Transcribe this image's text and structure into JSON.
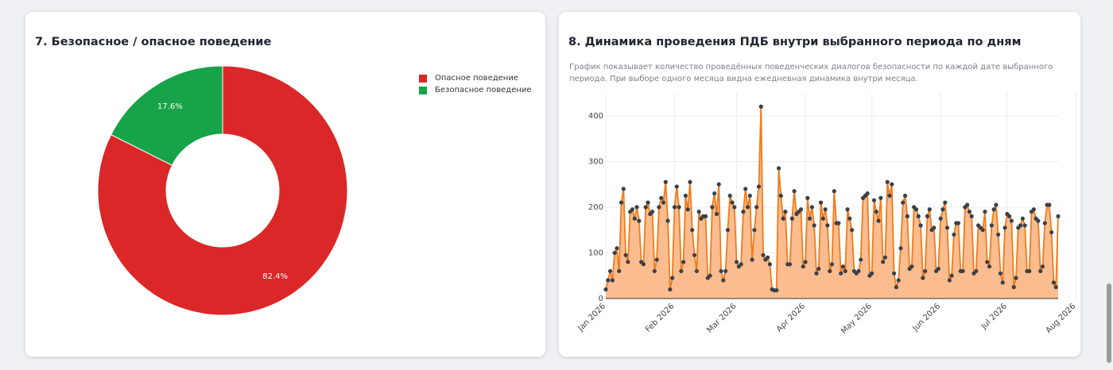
{
  "colors": {
    "danger": "#db2727",
    "safe": "#17a347",
    "line": "#f27b1b",
    "area": "#fbbd8f",
    "marker": "#3a4049"
  },
  "donut_card": {
    "title": "7. Безопасное / опасное поведение"
  },
  "line_card": {
    "title": "8. Динамика проведения ПДБ внутри выбранного периода по дням",
    "description": "График показывает количество проведённых поведенческих диалогов безопасности по каждой дате выбранного периода. При выборе одного месяца видна ежедневная динамика внутри месяца."
  },
  "chart_data": [
    {
      "type": "pie",
      "hole": true,
      "labels": [
        "Опасное поведение",
        "Безопасное поведение"
      ],
      "values": [
        82.4,
        17.6
      ],
      "value_labels": [
        "82.4%",
        "17.6%"
      ],
      "colors": [
        "#db2727",
        "#17a347"
      ],
      "legend": "top-right"
    },
    {
      "type": "area",
      "x_start": "2026-01-01",
      "xticks": [
        "Jan 2026",
        "Feb 2026",
        "Mar 2026",
        "Apr 2026",
        "May 2026",
        "Jun 2026",
        "Jul 2026",
        "Aug 2026"
      ],
      "yticks": [
        "0",
        "100",
        "200",
        "300",
        "400"
      ],
      "ylim": [
        0,
        450
      ],
      "grid": true,
      "values": [
        20,
        40,
        60,
        40,
        100,
        110,
        60,
        210,
        240,
        95,
        80,
        190,
        195,
        175,
        200,
        170,
        80,
        75,
        200,
        210,
        185,
        190,
        60,
        85,
        200,
        220,
        210,
        255,
        170,
        20,
        45,
        200,
        245,
        200,
        60,
        80,
        225,
        195,
        255,
        150,
        95,
        60,
        190,
        175,
        180,
        180,
        45,
        50,
        200,
        230,
        185,
        250,
        60,
        40,
        60,
        150,
        225,
        210,
        200,
        80,
        70,
        75,
        190,
        240,
        200,
        225,
        85,
        150,
        200,
        245,
        420,
        95,
        85,
        90,
        75,
        20,
        18,
        18,
        285,
        225,
        175,
        190,
        75,
        75,
        175,
        235,
        185,
        190,
        195,
        70,
        80,
        220,
        175,
        200,
        160,
        55,
        65,
        210,
        175,
        195,
        160,
        60,
        75,
        235,
        165,
        165,
        55,
        70,
        60,
        195,
        175,
        150,
        60,
        55,
        60,
        85,
        220,
        225,
        230,
        50,
        55,
        215,
        190,
        170,
        220,
        80,
        90,
        255,
        225,
        250,
        55,
        25,
        40,
        110,
        210,
        225,
        180,
        65,
        70,
        200,
        195,
        180,
        160,
        45,
        60,
        180,
        195,
        150,
        155,
        60,
        65,
        175,
        195,
        210,
        155,
        40,
        50,
        140,
        165,
        165,
        60,
        60,
        200,
        205,
        190,
        180,
        55,
        60,
        160,
        155,
        150,
        190,
        80,
        70,
        160,
        195,
        205,
        140,
        55,
        35,
        155,
        185,
        180,
        170,
        25,
        45,
        155,
        160,
        175,
        160,
        60,
        60,
        190,
        195,
        175,
        170,
        60,
        70,
        165,
        205,
        205,
        145,
        35,
        25,
        180
      ]
    }
  ]
}
